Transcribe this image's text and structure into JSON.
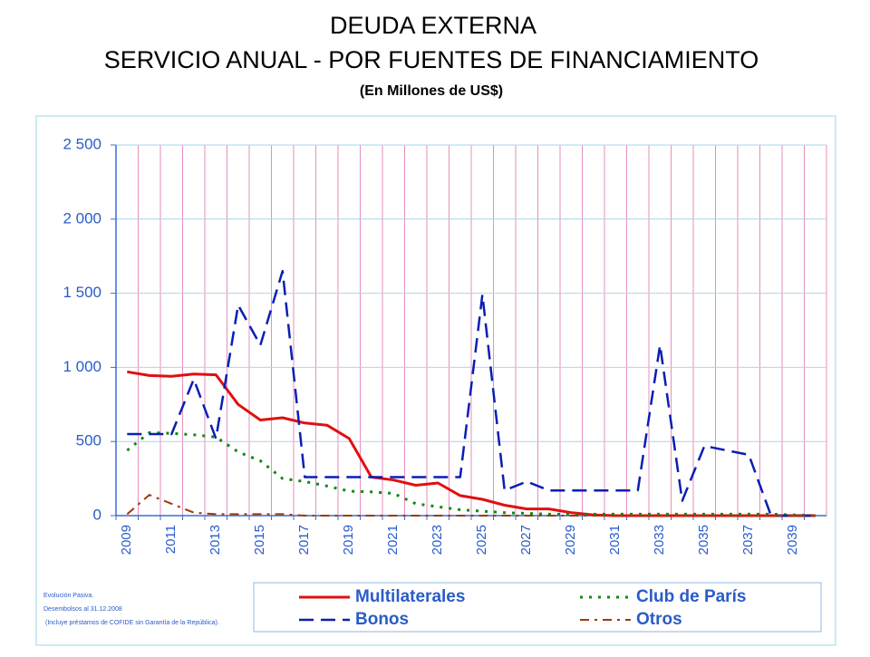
{
  "chart_data": {
    "type": "line",
    "title": "DEUDA EXTERNA",
    "subtitle": "SERVICIO ANUAL - POR FUENTES DE FINANCIAMIENTO",
    "units": "(En Millones de US$)",
    "notes": [
      "Evolución Pasiva.",
      "Desembolsos al 31.12.2008",
      "(Incluye préstamos de COFIDE sin Garantía de la República)."
    ],
    "categories": [
      "2009",
      null,
      "2011",
      null,
      "2013",
      null,
      "2015",
      null,
      "2017",
      null,
      "2019",
      null,
      "2021",
      null,
      "2023",
      null,
      "2025",
      null,
      "2027",
      null,
      "2029",
      null,
      "2031",
      null,
      "2033",
      null,
      "2035",
      null,
      "2037",
      null,
      "2039",
      null
    ],
    "series": [
      {
        "name": "Multilaterales",
        "color": "#e01010",
        "dash": "solid",
        "values": [
          970,
          945,
          940,
          955,
          950,
          750,
          645,
          660,
          625,
          610,
          520,
          260,
          240,
          205,
          220,
          135,
          110,
          70,
          45,
          45,
          20,
          5,
          0,
          0,
          0,
          0,
          0,
          0,
          0,
          0,
          0,
          0
        ]
      },
      {
        "name": "Club de París",
        "color": "#108a10",
        "dash": "dotted",
        "values": [
          440,
          560,
          555,
          545,
          530,
          430,
          370,
          250,
          230,
          200,
          165,
          160,
          150,
          80,
          60,
          40,
          30,
          20,
          15,
          10,
          10,
          10,
          10,
          10,
          10,
          10,
          10,
          10,
          10,
          10,
          5,
          0
        ]
      },
      {
        "name": "Bonos",
        "color": "#0a1eb4",
        "dash": "dashed",
        "values": [
          550,
          550,
          550,
          920,
          520,
          1420,
          1150,
          1650,
          260,
          260,
          260,
          260,
          260,
          260,
          260,
          260,
          1490,
          170,
          230,
          170,
          170,
          170,
          170,
          170,
          1150,
          100,
          470,
          440,
          410,
          0,
          0,
          0
        ]
      },
      {
        "name": "Otros",
        "color": "#9a3a0a",
        "dash": "dashdot",
        "values": [
          10,
          140,
          80,
          20,
          10,
          10,
          10,
          10,
          0,
          0,
          0,
          0,
          0,
          0,
          0,
          0,
          0,
          0,
          0,
          0,
          0,
          0,
          0,
          0,
          0,
          0,
          0,
          0,
          0,
          0,
          0,
          0
        ]
      }
    ],
    "ylim": [
      0,
      2500
    ],
    "yticks": [
      0,
      500,
      {
        "value": 1000,
        "label": "1 000"
      },
      {
        "value": 1500,
        "label": "1 500"
      },
      {
        "value": 2000,
        "label": "2 000"
      },
      {
        "value": 2500,
        "label": "2 500"
      }
    ],
    "grid": true
  }
}
